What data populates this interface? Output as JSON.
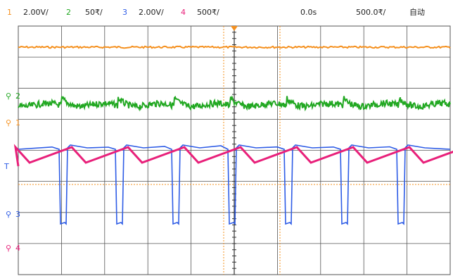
{
  "colors": {
    "ch1": "#f5901e",
    "ch2": "#22a822",
    "ch3": "#2e5ce6",
    "ch4": "#e8207a",
    "grid": "#555555",
    "marker": "#f5901e"
  },
  "header": {
    "ch1_num": "1",
    "ch1_scale": "2.00V/",
    "ch2_num": "2",
    "ch2_scale": "50₹/",
    "ch3_num": "3",
    "ch3_scale": "2.00V/",
    "ch4_num": "4",
    "ch4_scale": "500₹/",
    "time_offset": "0.0s",
    "time_scale": "500.0₹/",
    "trigger_mode": "自动"
  },
  "channels": {
    "ch2_label": "2",
    "ch1_label": "1",
    "ch3_label": "3",
    "ch4_label": "4",
    "trigger_label": "T"
  }
}
